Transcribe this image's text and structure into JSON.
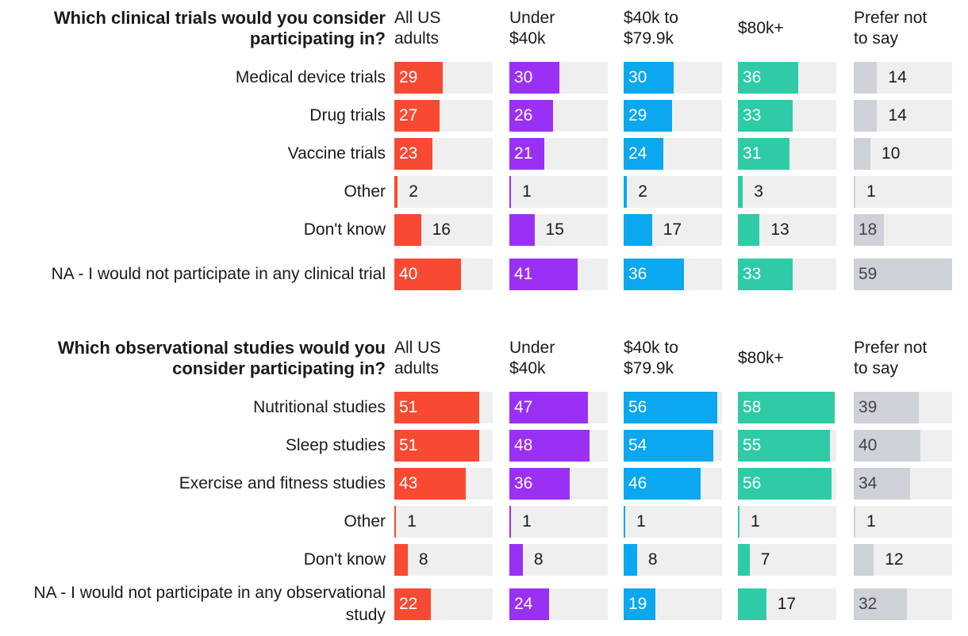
{
  "columns": [
    {
      "label": "All US adults",
      "lines": [
        "All US",
        "adults"
      ],
      "color": "#f84a32"
    },
    {
      "label": "Under $40k",
      "lines": [
        "Under",
        "$40k"
      ],
      "color": "#9b30f5"
    },
    {
      "label": "$40k to $79.9k",
      "lines": [
        "$40k to",
        "$79.9k"
      ],
      "color": "#0ba7ef"
    },
    {
      "label": "$80k+",
      "lines": [
        "$80k+"
      ],
      "color": "#2ecba6"
    },
    {
      "label": "Prefer not to say",
      "lines": [
        "Prefer not",
        "to say"
      ],
      "color": "#cfd1d9"
    }
  ],
  "chart_data": [
    {
      "type": "bar",
      "title": "Which clinical trials would you consider participating in?",
      "categories": [
        "Medical device trials",
        "Drug trials",
        "Vaccine trials",
        "Other",
        "Don't know",
        "NA - I would not participate in any clinical trial"
      ],
      "series": [
        {
          "name": "All US adults",
          "values": [
            29,
            27,
            23,
            2,
            16,
            40
          ]
        },
        {
          "name": "Under $40k",
          "values": [
            30,
            26,
            21,
            1,
            15,
            41
          ]
        },
        {
          "name": "$40k to $79.9k",
          "values": [
            30,
            29,
            24,
            2,
            17,
            36
          ]
        },
        {
          "name": "$80k+",
          "values": [
            36,
            33,
            31,
            3,
            13,
            33
          ]
        },
        {
          "name": "Prefer not to say",
          "values": [
            14,
            14,
            10,
            1,
            18,
            59
          ]
        }
      ],
      "xlim": [
        0,
        59
      ]
    },
    {
      "type": "bar",
      "title": "Which observational studies would you consider participating in?",
      "categories": [
        "Nutritional studies",
        "Sleep studies",
        "Exercise and fitness studies",
        "Other",
        "Don't know",
        "NA - I would not participate in any observational study"
      ],
      "series": [
        {
          "name": "All US adults",
          "values": [
            51,
            51,
            43,
            1,
            8,
            22
          ]
        },
        {
          "name": "Under $40k",
          "values": [
            47,
            48,
            36,
            1,
            8,
            24
          ]
        },
        {
          "name": "$40k to $79.9k",
          "values": [
            56,
            54,
            46,
            1,
            8,
            19
          ]
        },
        {
          "name": "$80k+",
          "values": [
            58,
            55,
            56,
            1,
            7,
            17
          ]
        },
        {
          "name": "Prefer not to say",
          "values": [
            39,
            40,
            34,
            1,
            12,
            32
          ]
        }
      ],
      "xlim": [
        0,
        59
      ]
    }
  ]
}
